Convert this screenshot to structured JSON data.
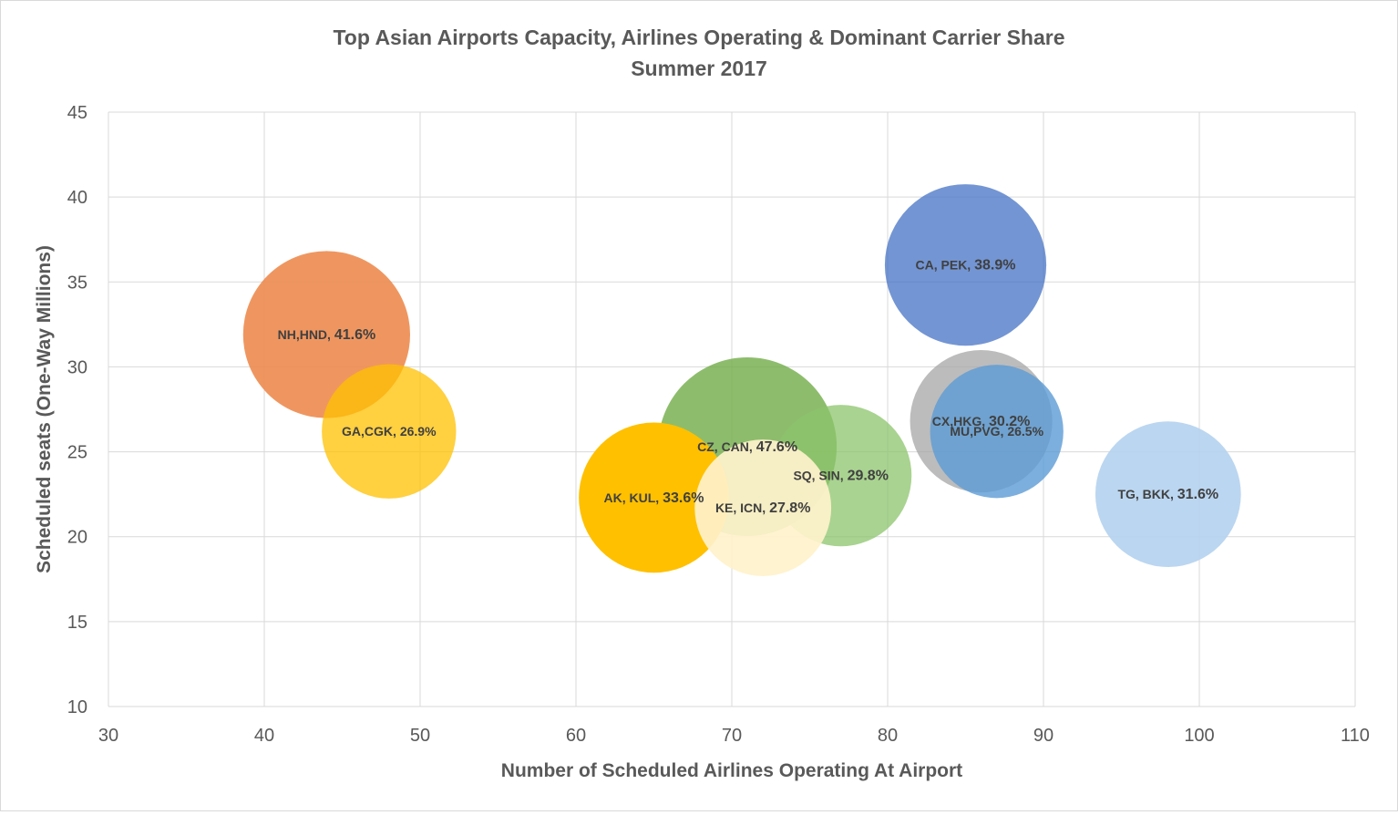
{
  "chart_data": {
    "type": "bubble",
    "title": "Top Asian Airports Capacity, Airlines Operating & Dominant Carrier Share",
    "subtitle": "Summer 2017",
    "xlabel": "Number of Scheduled Airlines Operating At Airport",
    "ylabel": "Scheduled seats (One-Way Millions)",
    "xlim": [
      30,
      110
    ],
    "ylim": [
      10,
      45
    ],
    "x_ticks": [
      30,
      40,
      50,
      60,
      70,
      80,
      90,
      100,
      110
    ],
    "y_ticks": [
      10,
      15,
      20,
      25,
      30,
      35,
      40,
      45
    ],
    "grid": true,
    "legend": "none",
    "bubble_size_meaning": "dominant carrier share (%)",
    "points": [
      {
        "carrier": "NH",
        "airport": "HND",
        "label": "NH,HND,",
        "share": 41.6,
        "share_text": "41.6%",
        "x": 44,
        "y": 31.9,
        "color": "#ED8B4F",
        "opacity": 0.9
      },
      {
        "carrier": "GA",
        "airport": "CGK",
        "label": "GA,CGK,",
        "share": 26.9,
        "share_text": "26.9%",
        "x": 48,
        "y": 26.2,
        "color": "#FFC000",
        "opacity": 0.75
      },
      {
        "carrier": "CA",
        "airport": "PEK",
        "label": "CA, PEK,",
        "share": 38.9,
        "share_text": "38.9%",
        "x": 85,
        "y": 36.0,
        "color": "#4472C4",
        "opacity": 0.75
      },
      {
        "carrier": "CX",
        "airport": "HKG",
        "label": "CX,HKG,",
        "share": 30.2,
        "share_text": "30.2%",
        "x": 86,
        "y": 26.8,
        "color": "#A5A5A5",
        "opacity": 0.75
      },
      {
        "carrier": "CZ",
        "airport": "CAN",
        "label": "CZ, CAN,",
        "share": 47.6,
        "share_text": "47.6%",
        "x": 71,
        "y": 25.3,
        "color": "#70AD47",
        "opacity": 0.8
      },
      {
        "carrier": "SQ",
        "airport": "SIN",
        "label": "SQ, SIN,",
        "share": 29.8,
        "share_text": "29.8%",
        "x": 77,
        "y": 23.6,
        "color": "#8CC46B",
        "opacity": 0.75
      },
      {
        "carrier": "MU",
        "airport": "PVG",
        "label": "MU,PVG,",
        "share": 26.5,
        "share_text": "26.5%",
        "x": 87,
        "y": 26.2,
        "color": "#5B9BD5",
        "opacity": 0.8
      },
      {
        "carrier": "AK",
        "airport": "KUL",
        "label": "AK, KUL,",
        "share": 33.6,
        "share_text": "33.6%",
        "x": 65,
        "y": 22.3,
        "color": "#FFC000",
        "opacity": 1.0
      },
      {
        "carrier": "KE",
        "airport": "ICN",
        "label": "KE, ICN,",
        "share": 27.8,
        "share_text": "27.8%",
        "x": 72,
        "y": 21.7,
        "color": "#FFF2CC",
        "opacity": 0.92
      },
      {
        "carrier": "TG",
        "airport": "BKK",
        "label": "TG, BKK,",
        "share": 31.6,
        "share_text": "31.6%",
        "x": 98,
        "y": 22.5,
        "color": "#B4D1EE",
        "opacity": 0.9
      }
    ]
  }
}
